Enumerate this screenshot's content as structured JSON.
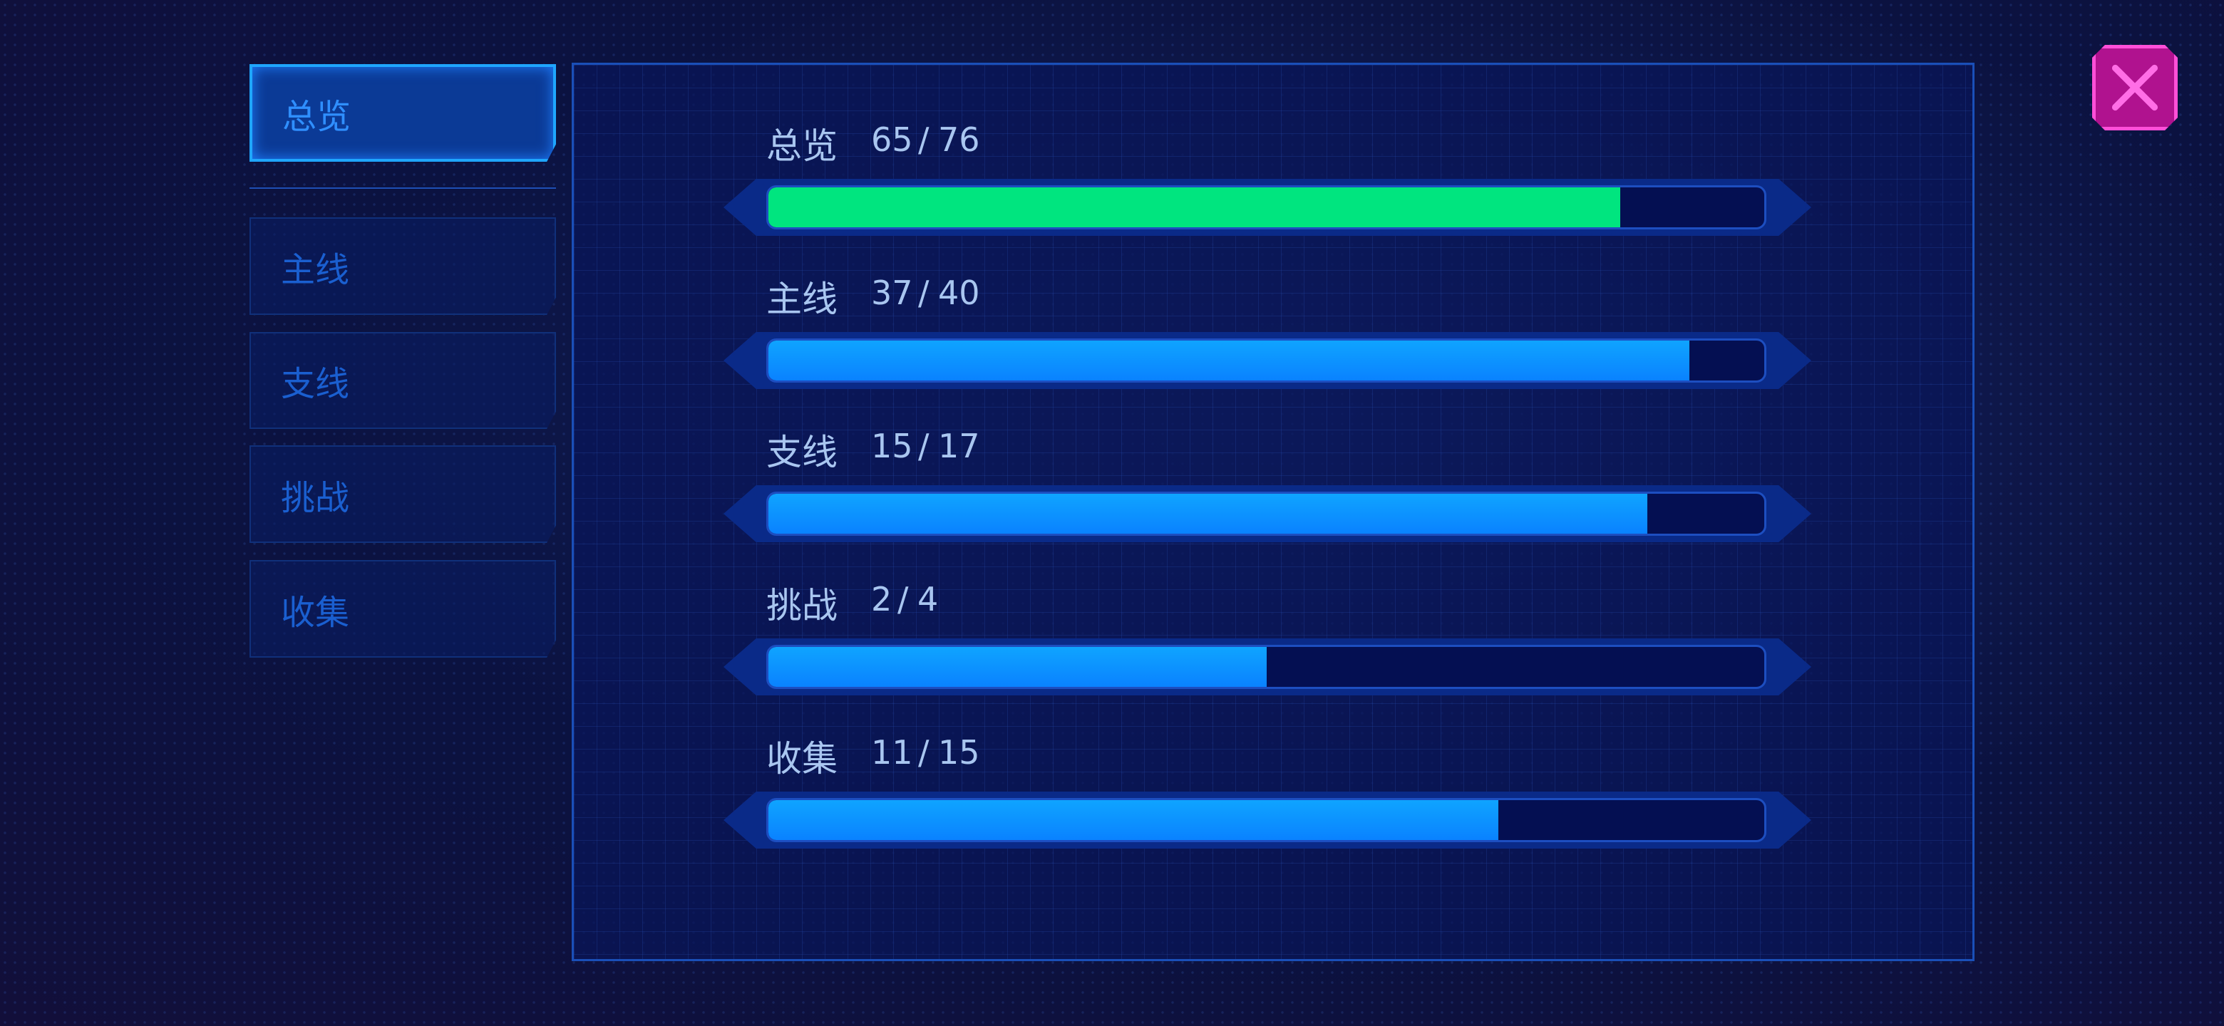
{
  "tabs": [
    "总览",
    "主线",
    "支线",
    "挑战",
    "收集"
  ],
  "separator": "/",
  "rows": [
    {
      "label": "总览",
      "completed": 65,
      "total": 76
    },
    {
      "label": "主线",
      "completed": 37,
      "total": 40
    },
    {
      "label": "支线",
      "completed": 15,
      "total": 17
    },
    {
      "label": "挑战",
      "completed": 2,
      "total": 4
    },
    {
      "label": "收集",
      "completed": 11,
      "total": 15
    }
  ]
}
